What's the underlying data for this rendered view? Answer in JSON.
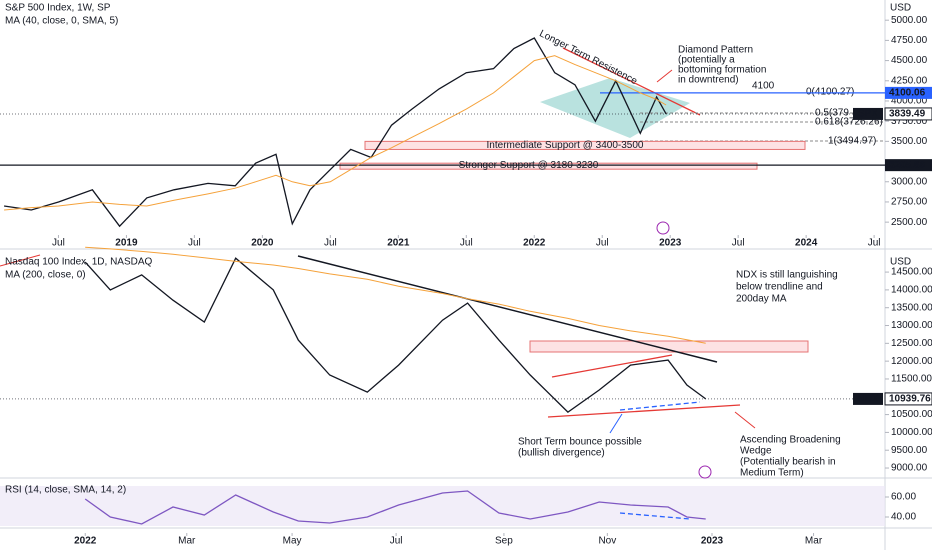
{
  "chart_data": [
    {
      "type": "line",
      "title": "S&P 500 Index, 1W, SP",
      "y_axis_label": "USD",
      "x": [
        2018.1,
        2018.3,
        2018.5,
        2018.75,
        2018.95,
        2019.15,
        2019.35,
        2019.6,
        2019.8,
        2019.95,
        2020.1,
        2020.22,
        2020.35,
        2020.5,
        2020.65,
        2020.8,
        2020.95,
        2021.1,
        2021.3,
        2021.5,
        2021.7,
        2021.85,
        2022.0,
        2022.15,
        2022.3,
        2022.45,
        2022.6,
        2022.78,
        2022.9,
        2022.97
      ],
      "series": [
        {
          "name": "SPX",
          "color": "#131722",
          "values": [
            2700,
            2650,
            2750,
            2900,
            2450,
            2800,
            2900,
            2980,
            2950,
            3230,
            3340,
            2480,
            2900,
            3150,
            3400,
            3300,
            3700,
            3900,
            4150,
            4350,
            4400,
            4650,
            4780,
            4350,
            4200,
            3750,
            4250,
            3600,
            4050,
            3839.49
          ]
        },
        {
          "name": "MA (40, close, 0, SMA, 5)",
          "color": "#f5a23b",
          "values": [
            2650,
            2680,
            2700,
            2750,
            2720,
            2700,
            2770,
            2850,
            2920,
            3000,
            3080,
            3000,
            2950,
            3000,
            3150,
            3300,
            3420,
            3550,
            3720,
            3900,
            4100,
            4300,
            4500,
            4560,
            4450,
            4350,
            4250,
            4100,
            4020,
            3950
          ]
        }
      ],
      "xlim": [
        2018.07,
        2024.58
      ],
      "xticks": [
        {
          "value": 2018.5,
          "label": "Jul"
        },
        2019,
        {
          "value": 2019.5,
          "label": "Jul"
        },
        2020,
        {
          "value": 2020.5,
          "label": "Jul"
        },
        2021,
        {
          "value": 2021.5,
          "label": "Jul"
        },
        2022,
        {
          "value": 2022.5,
          "label": "Jul"
        },
        2023,
        {
          "value": 2023.5,
          "label": "Jul"
        },
        2024,
        {
          "value": 2024.5,
          "label": "Jul"
        }
      ],
      "ylim": [
        2180,
        5250
      ],
      "yticks": [
        {
          "value": 2500,
          "label": "2500.00"
        },
        {
          "value": 2750,
          "label": "2750.00"
        },
        {
          "value": 3000,
          "label": "3000.00"
        },
        {
          "value": 3500,
          "label": "3500.00"
        },
        {
          "value": 3750,
          "label": "3750.00"
        },
        {
          "value": 4000,
          "label": "4000.00"
        },
        {
          "value": 4250,
          "label": "4250.00"
        },
        {
          "value": 4500,
          "label": "4500.00"
        },
        {
          "value": 4750,
          "label": "4750.00"
        },
        {
          "value": 5000,
          "label": "5000.00"
        }
      ],
      "levels": [
        {
          "value": 4100.06,
          "color": "#2962ff"
        },
        {
          "value": 3205.66,
          "color": "#131722"
        }
      ],
      "bands": [
        {
          "label": "Intermediate Support @ 3400-3500",
          "range": [
            3400,
            3500
          ]
        },
        {
          "label": "Stronger Support @ 3180-3230",
          "range": [
            3180,
            3230
          ]
        }
      ],
      "annotations": {
        "resistance": "Longer Term Resistence",
        "diamond": [
          "Diamond Pattern",
          "(potentially a",
          "bottoming formation",
          "in downtrend)"
        ],
        "level": "4100",
        "fib": [
          "0(4100.27)",
          "0.5(379",
          "0.618(3726.26)",
          "1(3494.97)"
        ]
      }
    },
    {
      "type": "line",
      "title": "Nasdaq 100 Index, 1D, NASDAQ",
      "y_axis_label": "USD",
      "x": [
        2022.0,
        2022.04,
        2022.09,
        2022.14,
        2022.19,
        2022.24,
        2022.3,
        2022.34,
        2022.39,
        2022.45,
        2022.5,
        2022.57,
        2022.61,
        2022.66,
        2022.71,
        2022.77,
        2022.82,
        2022.87,
        2022.93,
        2022.96,
        2022.99
      ],
      "series": [
        {
          "name": "NDX",
          "color": "#131722",
          "values": [
            14780,
            14000,
            14420,
            13710,
            13100,
            14890,
            14000,
            12590,
            11610,
            11130,
            11890,
            13150,
            13630,
            12590,
            11610,
            10570,
            11190,
            11890,
            12030,
            11330,
            10939.76
          ]
        },
        {
          "name": "MA (200, close, 0)",
          "color": "#f5a23b",
          "values": [
            15200,
            15150,
            15080,
            15000,
            14900,
            14800,
            14700,
            14600,
            14450,
            14300,
            14100,
            13900,
            13750,
            13600,
            13400,
            13200,
            13000,
            12850,
            12700,
            12600,
            12500
          ]
        }
      ],
      "xlim": [
        2021.864,
        2023.276
      ],
      "ylim": [
        8720,
        15120
      ],
      "yticks": [
        {
          "value": 9000,
          "label": "9000.00"
        },
        {
          "value": 9500,
          "label": "9500.00"
        },
        {
          "value": 10000,
          "label": "10000.00"
        },
        {
          "value": 10500,
          "label": "10500.00"
        },
        {
          "value": 11500,
          "label": "11500.00"
        },
        {
          "value": 12000,
          "label": "12000.00"
        },
        {
          "value": 12500,
          "label": "12500.00"
        },
        {
          "value": 13000,
          "label": "13000.00"
        },
        {
          "value": 13500,
          "label": "13500.00"
        },
        {
          "value": 14000,
          "label": "14000.00"
        },
        {
          "value": 14500,
          "label": "14500.00"
        }
      ],
      "annotations": {
        "note": [
          "NDX is still languishing",
          "below trendline and",
          "200day MA"
        ],
        "bounce": [
          "Short Term bounce possible",
          "(bullish divergence)"
        ],
        "wedge": [
          "Ascending Broadening",
          "Wedge",
          "(Potentially bearish in",
          "Medium Term)"
        ]
      }
    },
    {
      "type": "line",
      "x": [
        2022.0,
        2022.04,
        2022.09,
        2022.14,
        2022.19,
        2022.24,
        2022.3,
        2022.34,
        2022.39,
        2022.45,
        2022.5,
        2022.57,
        2022.61,
        2022.66,
        2022.71,
        2022.77,
        2022.82,
        2022.87,
        2022.93,
        2022.96,
        2022.99
      ],
      "series": [
        {
          "name": "RSI (14, close, SMA, 14, 2)",
          "color": "#7e57c2",
          "values": [
            58,
            40,
            33,
            50,
            42,
            62,
            45,
            36,
            34,
            40,
            52,
            64,
            66,
            44,
            38,
            45,
            55,
            52,
            50,
            40,
            38
          ]
        }
      ],
      "xlim": [
        2021.864,
        2023.276
      ],
      "xticks": [
        {
          "value": 2022.0,
          "label": "2022"
        },
        {
          "value": 2022.162,
          "label": "Mar"
        },
        {
          "value": 2022.33,
          "label": "May"
        },
        {
          "value": 2022.496,
          "label": "Jul"
        },
        {
          "value": 2022.668,
          "label": "Sep"
        },
        {
          "value": 2022.833,
          "label": "Nov"
        },
        {
          "value": 2023.0,
          "label": "2023"
        },
        {
          "value": 2023.162,
          "label": "Mar"
        }
      ],
      "ylim": [
        29,
        77
      ],
      "yticks": [
        {
          "value": 40,
          "label": "40.00"
        },
        {
          "value": 60,
          "label": "60.00"
        }
      ]
    }
  ]
}
